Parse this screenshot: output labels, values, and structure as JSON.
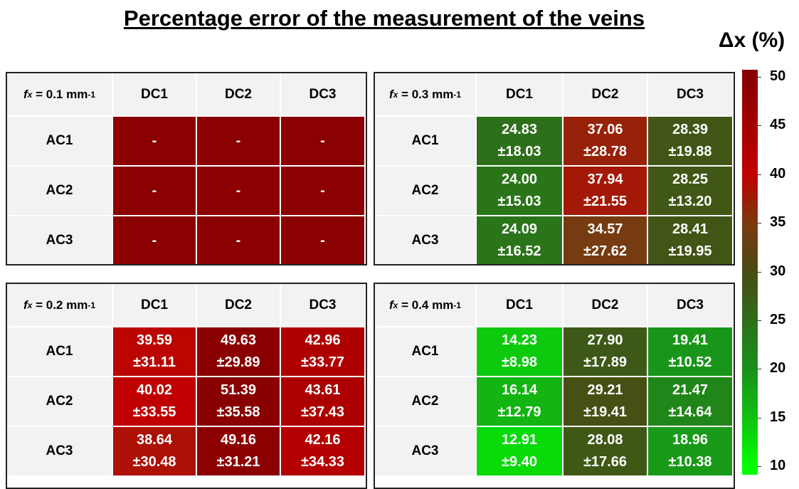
{
  "title": "Percentage error of the measurement of the veins",
  "colorbar": {
    "label": "Δx (%)",
    "ticks": [
      50,
      45,
      40,
      35,
      30,
      25,
      20,
      15,
      10
    ],
    "colors": [
      "#880000",
      "#a40000",
      "#c00000",
      "#7a3a10",
      "#4a4a14",
      "#2e6e1a",
      "#1a901a",
      "#10c010",
      "#00ff00"
    ],
    "missing_color": "#8b0000"
  },
  "panels": [
    {
      "label": {
        "var": "f",
        "sub": "x",
        "text": " = 0.1 mm",
        "sup": "-1"
      },
      "columns": [
        "DC1",
        "DC2",
        "DC3"
      ],
      "rows": [
        {
          "label": "AC1",
          "cells": [
            {
              "mean": "-"
            },
            {
              "mean": "-"
            },
            {
              "mean": "-"
            }
          ]
        },
        {
          "label": "AC2",
          "cells": [
            {
              "mean": "-"
            },
            {
              "mean": "-"
            },
            {
              "mean": "-"
            }
          ]
        },
        {
          "label": "AC3",
          "cells": [
            {
              "mean": "-"
            },
            {
              "mean": "-"
            },
            {
              "mean": "-"
            }
          ]
        }
      ]
    },
    {
      "label": {
        "var": "f",
        "sub": "x",
        "text": " = 0.3 mm",
        "sup": "-1"
      },
      "columns": [
        "DC1",
        "DC2",
        "DC3"
      ],
      "rows": [
        {
          "label": "AC1",
          "cells": [
            {
              "mean": "24.83",
              "sd": "±18.03"
            },
            {
              "mean": "37.06",
              "sd": "±28.78"
            },
            {
              "mean": "28.39",
              "sd": "±19.88"
            }
          ]
        },
        {
          "label": "AC2",
          "cells": [
            {
              "mean": "24.00",
              "sd": "±15.03"
            },
            {
              "mean": "37.94",
              "sd": "±21.55"
            },
            {
              "mean": "28.25",
              "sd": "±13.20"
            }
          ]
        },
        {
          "label": "AC3",
          "cells": [
            {
              "mean": "24.09",
              "sd": "±16.52"
            },
            {
              "mean": "34.57",
              "sd": "±27.62"
            },
            {
              "mean": "28.41",
              "sd": "±19.95"
            }
          ]
        }
      ]
    },
    {
      "label": {
        "var": "f",
        "sub": "x",
        "text": " = 0.2 mm",
        "sup": "-1"
      },
      "columns": [
        "DC1",
        "DC2",
        "DC3"
      ],
      "rows": [
        {
          "label": "AC1",
          "cells": [
            {
              "mean": "39.59",
              "sd": "±31.11"
            },
            {
              "mean": "49.63",
              "sd": "±29.89"
            },
            {
              "mean": "42.96",
              "sd": "±33.77"
            }
          ]
        },
        {
          "label": "AC2",
          "cells": [
            {
              "mean": "40.02",
              "sd": "±33.55"
            },
            {
              "mean": "51.39",
              "sd": "±35.58"
            },
            {
              "mean": "43.61",
              "sd": "±37.43"
            }
          ]
        },
        {
          "label": "AC3",
          "cells": [
            {
              "mean": "38.64",
              "sd": "±30.48"
            },
            {
              "mean": "49.16",
              "sd": "±31.21"
            },
            {
              "mean": "42.16",
              "sd": "±34.33"
            }
          ]
        }
      ]
    },
    {
      "label": {
        "var": "f",
        "sub": "x",
        "text": " = 0.4 mm",
        "sup": "-1"
      },
      "columns": [
        "DC1",
        "DC2",
        "DC3"
      ],
      "rows": [
        {
          "label": "AC1",
          "cells": [
            {
              "mean": "14.23",
              "sd": "±8.98"
            },
            {
              "mean": "27.90",
              "sd": "±17.89"
            },
            {
              "mean": "19.41",
              "sd": "±10.52"
            }
          ]
        },
        {
          "label": "AC2",
          "cells": [
            {
              "mean": "16.14",
              "sd": "±12.79"
            },
            {
              "mean": "29.21",
              "sd": "±19.41"
            },
            {
              "mean": "21.47",
              "sd": "±14.64"
            }
          ]
        },
        {
          "label": "AC3",
          "cells": [
            {
              "mean": "12.91",
              "sd": "±9.40"
            },
            {
              "mean": "28.08",
              "sd": "±17.66"
            },
            {
              "mean": "18.96",
              "sd": "±10.38"
            }
          ]
        }
      ]
    }
  ]
}
